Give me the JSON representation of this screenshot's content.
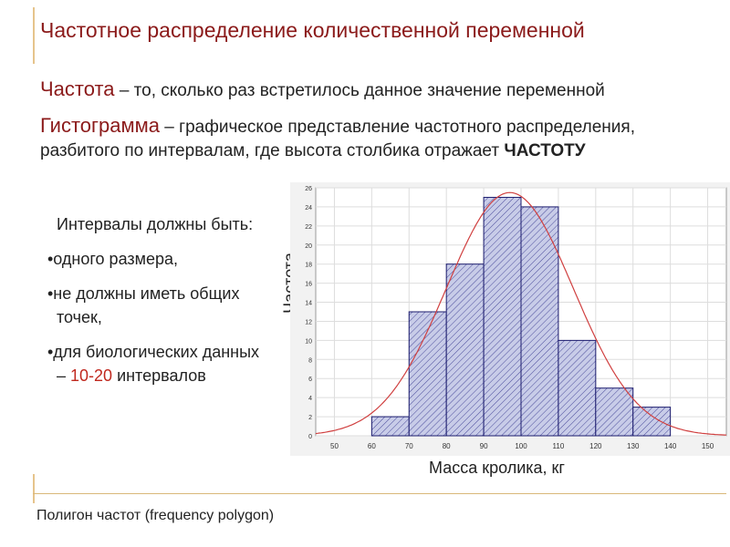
{
  "slide": {
    "title": "Частотное распределение количественной переменной",
    "freq_term": "Частота",
    "freq_def": " – то, сколько раз встретилось данное значение переменной",
    "hist_term": "Гистограмма",
    "hist_def": " – графическое представление частотного распределения, разбитого по интервалам, где высота столбика отражает ",
    "hist_def_bold": "ЧАСТОТУ",
    "intervals_head": "Интервалы должны быть:",
    "bullet1": "•одного размера,",
    "bullet2": "•не должны иметь общих точек,",
    "bullet3_pre": "•для биологических данных – ",
    "bullet3_red": "10-20",
    "bullet3_post": " интервалов",
    "footer": "Полигон частот (frequency polygon)"
  },
  "chart_data": {
    "type": "bar",
    "xlabel": "Масса кролика, кг",
    "ylabel": "Частота",
    "x_ticks": [
      "50",
      "60",
      "70",
      "80",
      "90",
      "100",
      "110",
      "120",
      "130",
      "140",
      "150"
    ],
    "y_ticks": [
      "0",
      "2",
      "4",
      "6",
      "8",
      "10",
      "12",
      "14",
      "16",
      "18",
      "20",
      "22",
      "24",
      "26"
    ],
    "bins": [
      [
        60,
        70
      ],
      [
        70,
        80
      ],
      [
        80,
        90
      ],
      [
        90,
        100
      ],
      [
        100,
        110
      ],
      [
        110,
        120
      ],
      [
        120,
        130
      ],
      [
        130,
        140
      ]
    ],
    "values": [
      2,
      13,
      18,
      25,
      24,
      10,
      5,
      3
    ],
    "xlim": [
      45,
      155
    ],
    "ylim": [
      0,
      26
    ],
    "grid": true,
    "bar_fill": "#c8cce8",
    "bar_hatch": "#2a2a88",
    "curve_color": "#d04040",
    "normal_curve": {
      "mean": 97,
      "sd": 17,
      "peak": 25.5
    }
  }
}
